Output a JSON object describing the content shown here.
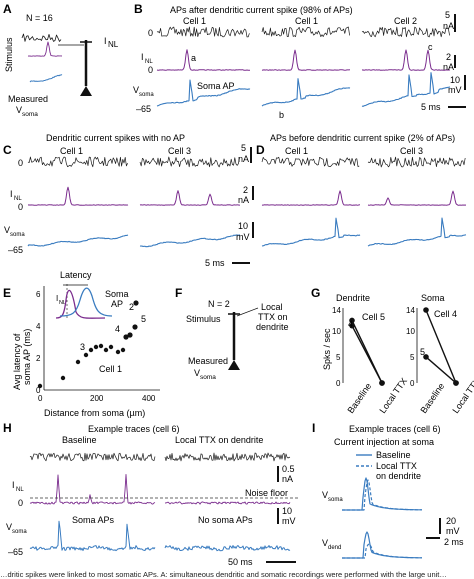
{
  "colors": {
    "stimulus": "#1a1a1a",
    "current": "#7b2d8e",
    "voltage": "#3a7cc0"
  },
  "A": {
    "label": "A",
    "n": "N = 16",
    "stimulus": "Stimulus",
    "inl": "I",
    "inl_sub": "NL",
    "measured": "Measured",
    "vsoma": "V",
    "vsoma_sub": "soma"
  },
  "B": {
    "label": "B",
    "title": "APs after dendritic current spike (98% of APs)",
    "cells": [
      "Cell 1",
      "Cell 1",
      "Cell 2"
    ],
    "row_inl": "I",
    "row_inl_sub": "NL",
    "row_v": "V",
    "row_v_sub": "soma",
    "zero1": "0",
    "zero2": "0",
    "neg65": "–65",
    "ann_a": "a",
    "ann_b": "b",
    "ann_c": "c",
    "soma_ap": "Soma AP",
    "scale_na": "5",
    "scale_na_unit": "nA",
    "scale_na2": "2",
    "scale_na2_unit": "nA",
    "scale_mv": "10",
    "scale_mv_unit": "mV",
    "scale_ms": "5 ms"
  },
  "C": {
    "label": "C",
    "title": "Dendritic current spikes with no AP",
    "cells": [
      "Cell 1",
      "Cell 3"
    ],
    "scale_na": "5",
    "scale_na_unit": "nA",
    "row_inl": "I",
    "row_inl_sub": "NL",
    "row_v": "V",
    "row_v_sub": "soma",
    "zero1": "0",
    "zero2": "0",
    "neg65": "–65"
  },
  "D": {
    "label": "D",
    "title": "APs before dendritic current spike (2% of APs)",
    "cells": [
      "Cell 1",
      "Cell 3"
    ],
    "scale_na2": "2",
    "scale_na2_unit": "nA",
    "scale_mv": "10",
    "scale_mv_unit": "mV",
    "scale_ms": "5 ms"
  },
  "E": {
    "label": "E",
    "ylabel_1": "Avg latency of",
    "ylabel_2": "soma AP (ms)",
    "xlabel": "Distance from soma (µm)",
    "inset_latency": "Latency",
    "inset_inl": "I",
    "inset_inl_sub": "NL",
    "inset_soma": "Soma",
    "inset_ap": "AP",
    "cell_labels": [
      "2",
      "5",
      "4",
      "3",
      "Cell 1"
    ],
    "yticks": [
      "0",
      "2",
      "4",
      "6"
    ],
    "xticks": [
      "0",
      "200",
      "400"
    ]
  },
  "F": {
    "label": "F",
    "n": "N = 2",
    "stimulus": "Stimulus",
    "local": "Local",
    "ttx": "TTX on",
    "dendrite": "dendrite",
    "measured": "Measured",
    "vsoma": "V",
    "vsoma_sub": "soma"
  },
  "G": {
    "label": "G",
    "ylabel": "Spks / sec",
    "dendrite": "Dendrite",
    "soma": "Soma",
    "cell5": "Cell 5",
    "cell4": "Cell 4",
    "yticks": [
      "0",
      "5",
      "10",
      "14"
    ],
    "xticks": [
      "Baseline",
      "Local TTX",
      "Baseline",
      "Local TTX"
    ],
    "num4": "4",
    "num5": "5"
  },
  "H": {
    "label": "H",
    "title": "Example traces (cell 6)",
    "baseline": "Baseline",
    "ttx": "Local TTX on dendrite",
    "row_inl": "I",
    "row_inl_sub": "NL",
    "row_v": "V",
    "row_v_sub": "soma",
    "zero": "0",
    "neg65": "–65",
    "noise": "Noise floor",
    "soma_aps": "Soma APs",
    "no_soma_aps": "No soma APs",
    "scale_na": "0.5",
    "scale_na_unit": "nA",
    "scale_mv": "10",
    "scale_mv_unit": "mV",
    "scale_ms": "50 ms"
  },
  "I": {
    "label": "I",
    "title": "Example traces (cell 6)",
    "subtitle": "Current injection at soma",
    "legend_baseline": "Baseline",
    "legend_ttx_1": "Local TTX",
    "legend_ttx_2": "on dendrite",
    "row_v": "V",
    "row_v_sub": "soma",
    "row_vd": "V",
    "row_vd_sub": "dend",
    "scale_mv": "20",
    "scale_mv_unit": "mV",
    "scale_ms": "2 ms"
  },
  "caption": "…dritic spikes were linked to most somatic APs. A: simultaneous dendritic and somatic recordings were performed with the large unit…"
}
